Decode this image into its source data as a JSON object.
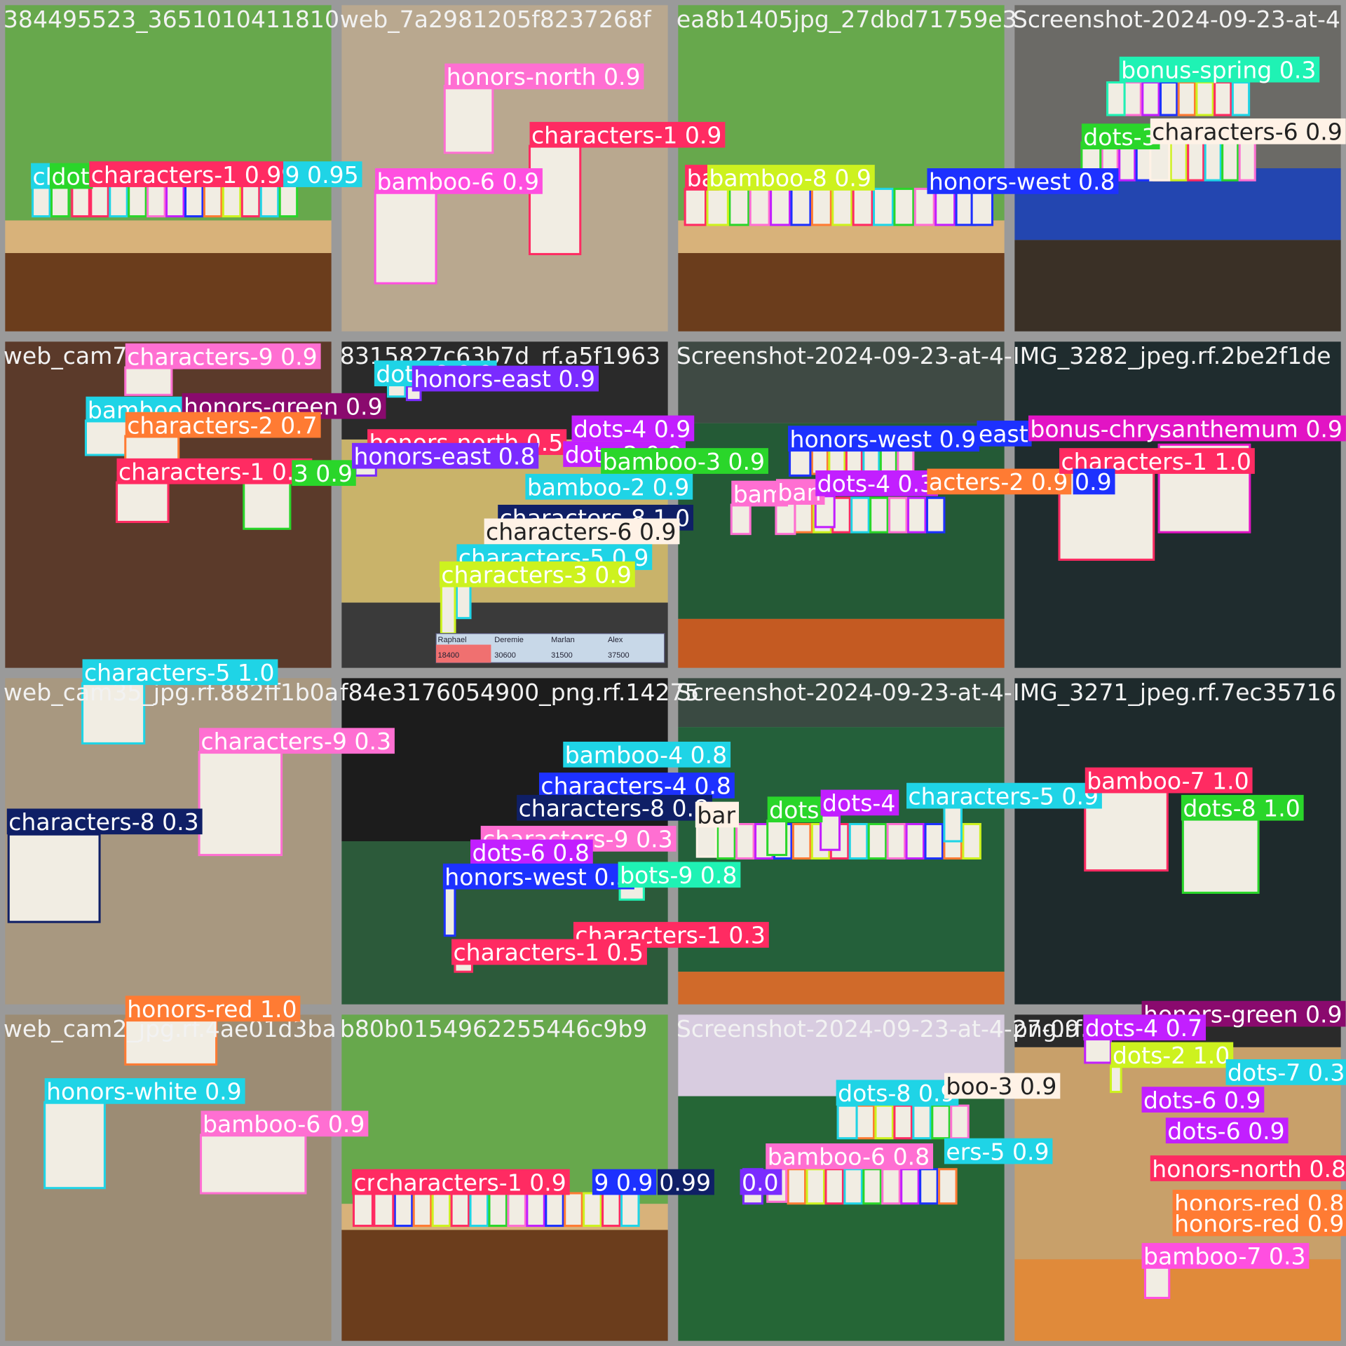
{
  "tiles": [
    {
      "title": "384495523_3651010411810",
      "detections": [
        "cl",
        "dot",
        "characters-1 0.99",
        "9 0.95"
      ]
    },
    {
      "title": "web_7a2981205f8237268f",
      "detections": [
        "honors-north 0.9",
        "characters-1 0.9",
        "bamboo-6 0.9"
      ]
    },
    {
      "title": "ea8b1405jpg_27dbd71759e3",
      "detections": [
        "ba",
        "bamboo-8 0.9",
        "honors-west 0.8"
      ]
    },
    {
      "title": "Screenshot-2024-09-23-at-4",
      "detections": [
        "bonus-spring 0.3",
        "dots-3",
        "characters-6 0.9"
      ]
    },
    {
      "title": "web_cam7_jpg.rf.ed3a",
      "detections": [
        "characters-9 0.9",
        "bamboo",
        "honors-green 0.9",
        "characters-2 0.7",
        "characters-1 0.9",
        "3 0.9"
      ]
    },
    {
      "title": "8315827c63b7d_rf.a5f1963",
      "detections": [
        "dots-8 0.9",
        "honors-east 0.9",
        "honors-north 0.5",
        "honors-east 0.8",
        "dots-4 0.9",
        "dots-2 0.9",
        "bamboo-3 0.9",
        "bamboo-2 0.9",
        "characters-8 1.0",
        "characters-6 0.9",
        "characters-5 0.9",
        "characters-3 0.9"
      ],
      "scoreboard": {
        "names": [
          "Raphael",
          "Deremie",
          "Marlan",
          "Alex"
        ],
        "scores": [
          "18400",
          "30600",
          "31500",
          "37500"
        ]
      }
    },
    {
      "title": "Screenshot-2024-09-23-at-4-",
      "detections": [
        "honors-west 0.9",
        "east",
        "bam",
        "ban",
        "dots-4 0.3",
        "acters-2 0.9"
      ]
    },
    {
      "title": "IMG_3282_jpeg.rf.2be2f1de",
      "detections": [
        "bonus-chrysanthemum 0.9",
        "characters-1 1.0",
        "0.9"
      ]
    },
    {
      "title": "web_cam35_jpg.rf.882ff1b0a",
      "detections": [
        "characters-5 1.0",
        "characters-9 0.3",
        "characters-8 0.3"
      ]
    },
    {
      "title": "f84e3176054900_png.rf.14275",
      "detections": [
        "bamboo-4 0.8",
        "characters-4 0.8",
        "characters-8 0.8",
        "characters-9 0.3",
        "dots-6 0.8",
        "honors-west 0.3",
        "bots-9 0.8",
        "characters-1 0.3",
        "characters-1 0.5"
      ]
    },
    {
      "title": "Screenshot-2024-09-23-at-4-",
      "detections": [
        "bar",
        "dots",
        "dots-4",
        "characters-5 0.9"
      ]
    },
    {
      "title": "IMG_3271_jpeg.rf.7ec35716",
      "detections": [
        "bamboo-7 1.0",
        "dots-8 1.0"
      ]
    },
    {
      "title": "web_cam2_jpg.rf.4ae01d3ba",
      "detections": [
        "honors-red 1.0",
        "honors-white 0.9",
        "bamboo-6 0.9"
      ]
    },
    {
      "title": "b80b0154962255446c9b9",
      "detections": [
        "cr",
        "characters-1 0.9",
        "9 0.9",
        "0.99"
      ]
    },
    {
      "title": "Screenshot-2024-09-23-at-4-27-09",
      "detections": [
        "dots-8 0.9",
        "boo-3 0.9",
        "bamboo-6 0.8",
        "ers-5 0.9",
        "0.0"
      ]
    },
    {
      "title": "png.rf.062592",
      "detections": [
        "honors-green 0.9",
        "dots-4 0.7",
        "dots-2 1.0",
        "dots-7 0.3",
        "dots-6 0.9",
        "dots-6 0.9",
        "honors-north 0.8",
        "honors-red 0.8",
        "honors-red 0.9",
        "bamboo-7 0.3"
      ]
    }
  ]
}
